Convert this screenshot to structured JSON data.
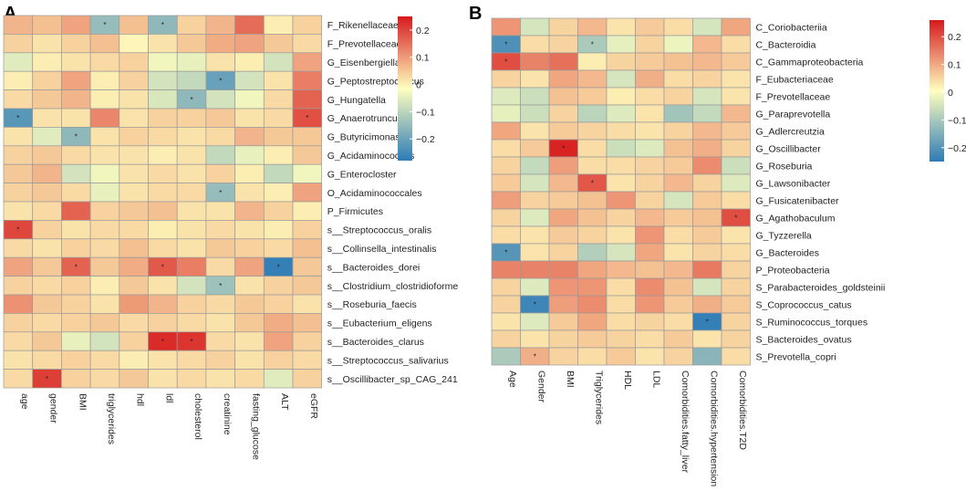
{
  "colors": {
    "low": "#2c7bb6",
    "mid": "#ffffbf",
    "high": "#d7191c",
    "grid": "#9a9a9a"
  },
  "chart_data": [
    {
      "panel": "A",
      "type": "heatmap",
      "title": "",
      "value_range": [
        -0.28,
        0.25
      ],
      "legend": {
        "position": "right",
        "ticks": [
          0.2,
          0.1,
          0,
          -0.1,
          -0.2
        ],
        "tick_labels": [
          "0.2",
          "0.1",
          "0",
          "−0.1",
          "−0.2"
        ]
      },
      "columns": [
        "age",
        "gender",
        "BMI",
        "triglycerides",
        "hdl",
        "ldl",
        "cholesterol",
        "creatinine",
        "fasting_glucose",
        "ALT",
        "eGFR"
      ],
      "rows": [
        "F_Rikenellaceae",
        "F_Prevotellaceae",
        "G_Eisenbergiella",
        "G_Peptostreptococcus",
        "G_Hungatella",
        "G_Anaerotruncus",
        "G_Butyricimonas",
        "G_Acidaminococcus",
        "G_Enterocloster",
        "O_Acidaminococcales",
        "P_Firmicutes",
        "s__Streptococcus_oralis",
        "s__Collinsella_intestinalis",
        "s__Bacteroides_dorei",
        "s__Clostridium_clostridioforme",
        "s__Roseburia_faecis",
        "s__Eubacterium_eligens",
        "s__Bacteroides_clarus",
        "s__Streptococcus_salivarius",
        "s__Oscillibacter_sp_CAG_241"
      ],
      "values": [
        [
          0.08,
          0.07,
          0.1,
          -0.14,
          0.07,
          -0.15,
          0.05,
          0.08,
          0.16,
          0.02,
          0.05
        ],
        [
          0.05,
          0.03,
          0.05,
          0.07,
          0.01,
          0.03,
          0.06,
          0.09,
          0.1,
          0.06,
          0.04
        ],
        [
          -0.04,
          0.02,
          0.03,
          0.04,
          0.05,
          -0.02,
          -0.03,
          0.03,
          0.02,
          -0.06,
          0.1
        ],
        [
          0.02,
          0.05,
          0.1,
          0.02,
          0.05,
          -0.06,
          -0.08,
          -0.2,
          -0.06,
          0.03,
          0.14
        ],
        [
          0.04,
          0.06,
          0.08,
          0.02,
          0.03,
          -0.05,
          -0.15,
          -0.06,
          -0.02,
          0.04,
          0.17
        ],
        [
          -0.22,
          0.03,
          0.03,
          0.13,
          0.03,
          0.05,
          0.05,
          0.06,
          0.03,
          0.04,
          0.19
        ],
        [
          0.03,
          -0.04,
          -0.15,
          0.03,
          0.05,
          0.04,
          0.03,
          0.04,
          0.08,
          0.06,
          0.06
        ],
        [
          0.05,
          0.06,
          0.04,
          0.03,
          0.03,
          0.02,
          0.03,
          -0.08,
          -0.03,
          0.02,
          0.06
        ],
        [
          0.06,
          0.08,
          -0.06,
          -0.02,
          0.03,
          0.04,
          0.03,
          0.05,
          0.02,
          -0.08,
          -0.02
        ],
        [
          0.05,
          0.06,
          0.04,
          -0.03,
          0.03,
          0.04,
          0.04,
          -0.14,
          0.03,
          0.02,
          0.1
        ],
        [
          0.03,
          0.04,
          0.17,
          0.05,
          0.06,
          0.07,
          0.03,
          0.03,
          0.08,
          0.05,
          0.02
        ],
        [
          0.2,
          0.05,
          0.03,
          0.04,
          0.04,
          0.02,
          0.03,
          0.04,
          0.03,
          0.02,
          0.05
        ],
        [
          0.04,
          0.03,
          0.05,
          0.04,
          0.07,
          0.04,
          0.03,
          0.06,
          0.05,
          0.04,
          0.07
        ],
        [
          0.1,
          0.06,
          0.17,
          0.06,
          0.09,
          0.18,
          0.14,
          0.04,
          0.1,
          -0.27,
          0.06
        ],
        [
          0.05,
          0.04,
          0.05,
          0.02,
          0.06,
          0.03,
          -0.06,
          -0.13,
          0.03,
          0.05,
          0.06
        ],
        [
          0.12,
          0.06,
          0.05,
          0.03,
          0.11,
          0.08,
          0.05,
          0.04,
          0.06,
          0.05,
          0.03
        ],
        [
          0.05,
          0.04,
          0.05,
          0.06,
          0.04,
          0.05,
          0.04,
          0.03,
          0.06,
          0.09,
          0.07
        ],
        [
          0.04,
          0.06,
          -0.03,
          -0.06,
          0.05,
          0.23,
          0.22,
          0.04,
          0.03,
          0.1,
          0.05
        ],
        [
          0.03,
          0.04,
          0.05,
          0.04,
          0.02,
          0.03,
          0.04,
          0.05,
          0.03,
          0.05,
          0.04
        ],
        [
          0.04,
          0.21,
          0.05,
          0.04,
          0.06,
          0.03,
          0.04,
          0.03,
          0.04,
          -0.04,
          0.05
        ]
      ],
      "significant": [
        [
          0,
          3
        ],
        [
          0,
          5
        ],
        [
          3,
          7
        ],
        [
          4,
          6
        ],
        [
          5,
          0
        ],
        [
          5,
          10
        ],
        [
          6,
          2
        ],
        [
          9,
          7
        ],
        [
          11,
          0
        ],
        [
          13,
          2
        ],
        [
          13,
          5
        ],
        [
          13,
          9
        ],
        [
          14,
          7
        ],
        [
          17,
          5
        ],
        [
          17,
          6
        ],
        [
          19,
          1
        ]
      ]
    },
    {
      "panel": "B",
      "type": "heatmap",
      "title": "",
      "value_range": [
        -0.25,
        0.26
      ],
      "legend": {
        "position": "right",
        "ticks": [
          0.2,
          0.1,
          0,
          -0.1,
          -0.2
        ],
        "tick_labels": [
          "0.2",
          "0.1",
          "0",
          "−0.1",
          "−0.2"
        ]
      },
      "columns": [
        "Age",
        "Gender",
        "BMI",
        "Triglycerides",
        "HDL",
        "LDL",
        "Comorbidities.fatty_liver",
        "Comorbidities.hypertension",
        "Comorbidities.T2D"
      ],
      "rows": [
        "C_Coriobacteriia",
        "C_Bacteroidia",
        "C_Gammaproteobacteria",
        "F_Eubacteriaceae",
        "F_Prevotellaceae",
        "G_Paraprevotella",
        "G_Adlercreutzia",
        "G_Oscillibacter",
        "G_Roseburia",
        "G_Lawsonibacter",
        "G_Fusicatenibacter",
        "G_Agathobaculum",
        "G_Tyzzerella",
        "G_Bacteroides",
        "P_Proteobacteria",
        "S_Parabacteroides_goldsteinii",
        "S_Coprococcus_catus",
        "S_Ruminococcus_torques",
        "S_Bacteroides_ovatus",
        "S_Prevotella_copri"
      ],
      "values": [
        [
          0.12,
          -0.05,
          0.05,
          0.08,
          0.03,
          0.06,
          0.04,
          -0.05,
          0.1
        ],
        [
          -0.21,
          0.04,
          0.05,
          -0.1,
          -0.03,
          0.05,
          -0.02,
          0.08,
          0.04
        ],
        [
          0.2,
          0.14,
          0.16,
          0.02,
          0.05,
          0.06,
          0.07,
          0.08,
          0.06
        ],
        [
          0.05,
          0.03,
          0.1,
          0.08,
          -0.05,
          0.09,
          0.04,
          0.05,
          0.03
        ],
        [
          -0.04,
          -0.06,
          0.07,
          0.06,
          0.02,
          0.04,
          0.05,
          -0.05,
          0.03
        ],
        [
          -0.03,
          -0.06,
          0.05,
          -0.08,
          -0.04,
          0.03,
          -0.11,
          -0.07,
          0.08
        ],
        [
          0.1,
          0.03,
          0.06,
          0.05,
          0.04,
          0.03,
          0.05,
          0.08,
          0.06
        ],
        [
          0.04,
          0.06,
          0.25,
          0.04,
          -0.06,
          -0.04,
          0.07,
          0.09,
          0.05
        ],
        [
          0.05,
          -0.07,
          0.11,
          0.04,
          0.04,
          0.05,
          0.06,
          0.13,
          -0.06
        ],
        [
          0.06,
          -0.05,
          0.08,
          0.19,
          0.03,
          0.05,
          0.08,
          0.05,
          -0.04
        ],
        [
          0.11,
          0.05,
          0.06,
          0.07,
          0.12,
          0.05,
          -0.05,
          0.06,
          0.04
        ],
        [
          0.05,
          -0.04,
          0.1,
          0.07,
          0.05,
          0.08,
          0.06,
          0.07,
          0.2
        ],
        [
          0.04,
          0.03,
          0.06,
          0.05,
          0.03,
          0.12,
          0.04,
          0.06,
          0.03
        ],
        [
          -0.2,
          0.03,
          0.05,
          -0.09,
          -0.05,
          0.1,
          0.03,
          0.05,
          0.04
        ],
        [
          0.14,
          0.14,
          0.14,
          0.1,
          0.08,
          0.07,
          0.08,
          0.15,
          0.05
        ],
        [
          0.05,
          -0.04,
          0.12,
          0.12,
          0.04,
          0.13,
          0.07,
          -0.05,
          0.05
        ],
        [
          0.05,
          -0.23,
          0.11,
          0.13,
          0.04,
          0.12,
          0.06,
          0.09,
          0.06
        ],
        [
          0.03,
          -0.04,
          0.06,
          0.1,
          0.04,
          0.05,
          0.04,
          -0.24,
          0.05
        ],
        [
          0.05,
          0.03,
          0.05,
          0.06,
          0.05,
          0.04,
          0.06,
          0.03,
          0.05
        ],
        [
          -0.1,
          0.09,
          0.05,
          0.04,
          0.06,
          0.03,
          0.05,
          -0.14,
          0.04
        ]
      ],
      "significant": [
        [
          1,
          0
        ],
        [
          1,
          3
        ],
        [
          2,
          0
        ],
        [
          7,
          2
        ],
        [
          9,
          3
        ],
        [
          11,
          8
        ],
        [
          13,
          0
        ],
        [
          16,
          1
        ],
        [
          17,
          7
        ],
        [
          19,
          1
        ]
      ]
    }
  ]
}
